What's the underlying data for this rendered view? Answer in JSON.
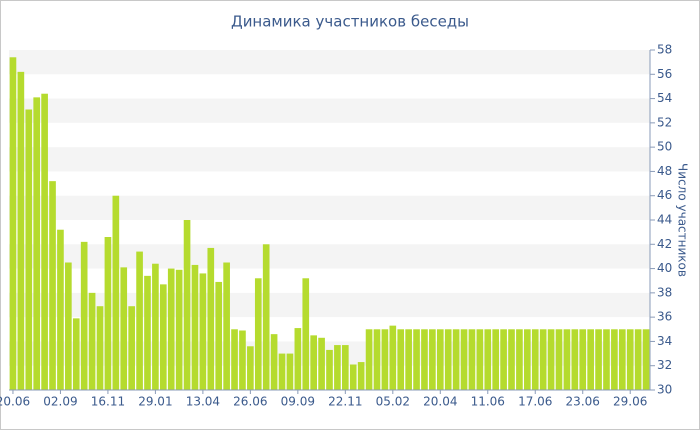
{
  "chart_data": {
    "type": "bar",
    "title": "Динамика участников беседы",
    "y_label": "Число участников",
    "categories": [
      "20.06",
      null,
      null,
      null,
      null,
      null,
      "02.09",
      null,
      null,
      null,
      null,
      null,
      "16.11",
      null,
      null,
      null,
      null,
      null,
      "29.01",
      null,
      null,
      null,
      null,
      null,
      "13.04",
      null,
      null,
      null,
      null,
      null,
      "26.06",
      null,
      null,
      null,
      null,
      null,
      "09.09",
      null,
      null,
      null,
      null,
      null,
      "22.11",
      null,
      null,
      null,
      null,
      null,
      "05.02",
      null,
      null,
      null,
      null,
      null,
      "20.04",
      null,
      null,
      null,
      null,
      null,
      "11.06",
      null,
      null,
      null,
      null,
      null,
      "17.06",
      null,
      null,
      null,
      null,
      null,
      "23.06",
      null,
      null,
      null,
      null,
      null,
      "29.06",
      null,
      null
    ],
    "values": [
      57.4,
      56.2,
      53.1,
      54.1,
      54.4,
      47.2,
      43.2,
      40.5,
      35.9,
      42.2,
      38.0,
      36.9,
      42.6,
      46.0,
      40.1,
      36.9,
      41.4,
      39.4,
      40.4,
      38.7,
      40.0,
      39.9,
      44.0,
      40.3,
      39.6,
      41.7,
      38.9,
      40.5,
      35.0,
      34.9,
      33.6,
      39.2,
      42.0,
      34.6,
      33.0,
      33.0,
      35.1,
      39.2,
      34.5,
      34.3,
      33.3,
      33.7,
      33.7,
      32.1,
      32.3,
      35.0,
      35.0,
      35.0,
      35.3,
      35.0,
      35.0,
      35.0,
      35.0,
      35.0,
      35.0,
      35.0,
      35.0,
      35.0,
      35.0,
      35.0,
      35.0,
      35.0,
      35.0,
      35.0,
      35.0,
      35.0,
      35.0,
      35.0,
      35.0,
      35.0,
      35.0,
      35.0,
      35.0,
      35.0,
      35.0,
      35.0,
      35.0,
      35.0,
      35.0,
      35.0,
      35.0
    ],
    "color": "#b5db2e",
    "ylim": [
      30,
      58
    ],
    "yticks": [
      30,
      32,
      34,
      36,
      38,
      40,
      42,
      44,
      46,
      48,
      50,
      52,
      54,
      56,
      58
    ],
    "grid": true
  }
}
